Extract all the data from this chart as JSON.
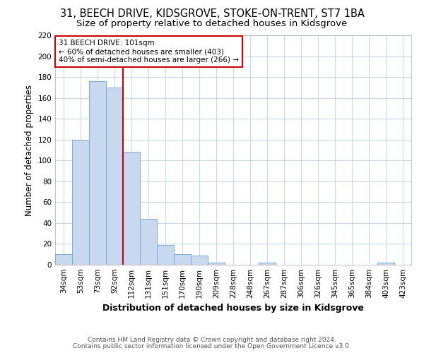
{
  "title1": "31, BEECH DRIVE, KIDSGROVE, STOKE-ON-TRENT, ST7 1BA",
  "title2": "Size of property relative to detached houses in Kidsgrove",
  "xlabel": "Distribution of detached houses by size in Kidsgrove",
  "ylabel": "Number of detached properties",
  "categories": [
    "34sqm",
    "53sqm",
    "73sqm",
    "92sqm",
    "112sqm",
    "131sqm",
    "151sqm",
    "170sqm",
    "190sqm",
    "209sqm",
    "228sqm",
    "248sqm",
    "267sqm",
    "287sqm",
    "306sqm",
    "326sqm",
    "345sqm",
    "365sqm",
    "384sqm",
    "403sqm",
    "423sqm"
  ],
  "values": [
    10,
    120,
    176,
    170,
    108,
    44,
    19,
    10,
    9,
    2,
    0,
    0,
    2,
    0,
    0,
    0,
    0,
    0,
    0,
    2,
    0
  ],
  "bar_color": "#c8d8ee",
  "bar_edge_color": "#7aadd4",
  "red_line_x": 3.5,
  "annotation_line1": "31 BEECH DRIVE: 101sqm",
  "annotation_line2": "← 60% of detached houses are smaller (403)",
  "annotation_line3": "40% of semi-detached houses are larger (266) →",
  "annotation_box_color": "#ffffff",
  "annotation_box_edge_color": "#cc0000",
  "red_line_color": "#cc0000",
  "footer1": "Contains HM Land Registry data © Crown copyright and database right 2024.",
  "footer2": "Contains public sector information licensed under the Open Government Licence v3.0.",
  "ylim": [
    0,
    220
  ],
  "yticks": [
    0,
    20,
    40,
    60,
    80,
    100,
    120,
    140,
    160,
    180,
    200,
    220
  ],
  "bg_color": "#ffffff",
  "grid_color": "#c8d8ee",
  "title1_fontsize": 10.5,
  "title2_fontsize": 9.5,
  "xlabel_fontsize": 9,
  "ylabel_fontsize": 8.5,
  "tick_fontsize": 7.5,
  "footer_fontsize": 6.5
}
